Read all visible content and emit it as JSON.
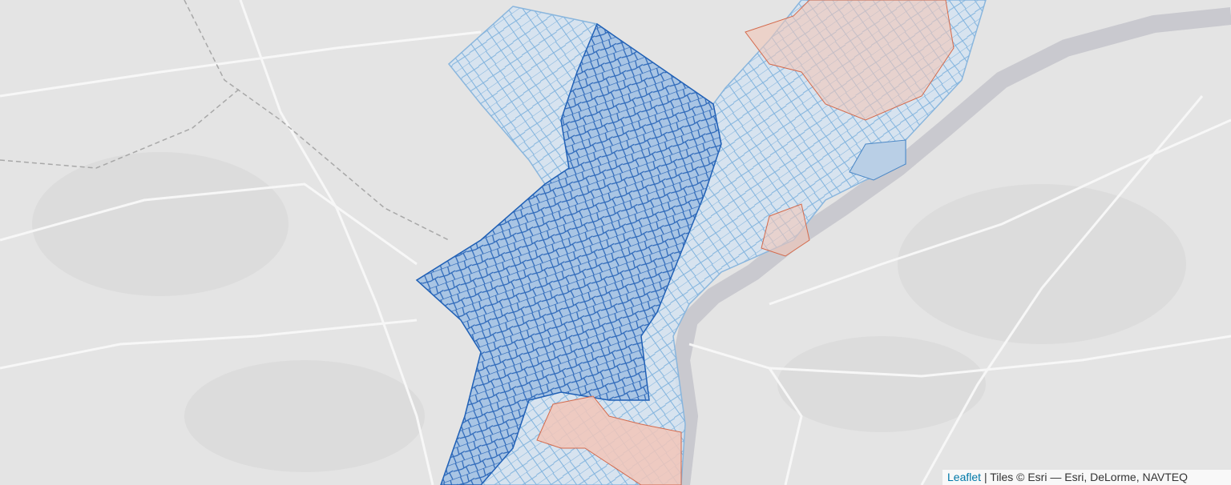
{
  "attribution": {
    "link": "Leaflet",
    "text": "| Tiles © Esri — Esri, DeLorme, NAVTEQ"
  }
}
